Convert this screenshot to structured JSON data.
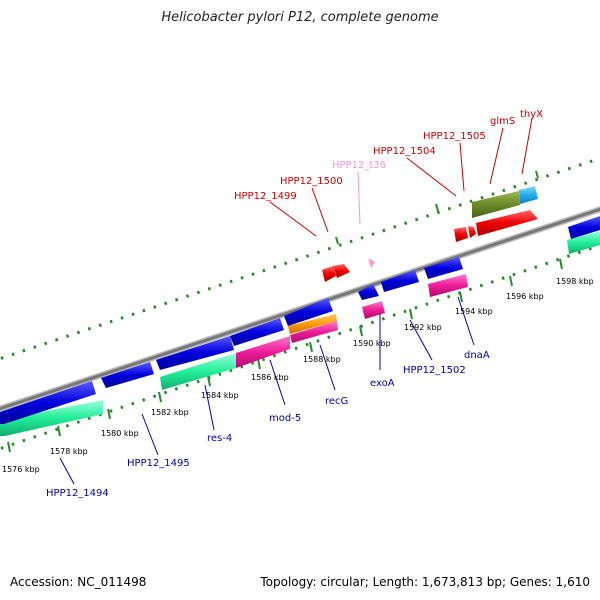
{
  "title": "Helicobacter pylori P12, complete genome",
  "footer": {
    "accession": "Accession: NC_011498",
    "summary": "Topology: circular; Length: 1,673,813 bp; Genes: 1,610"
  },
  "colors": {
    "forward_label": "#cc0000",
    "reverse_label": "#0000aa",
    "trna_label": "#ee99cc",
    "backbone": "#888888",
    "tick": "#2a8a2a"
  },
  "axis_labels": [
    "1576 kbp",
    "1578 kbp",
    "1580 kbp",
    "1582 kbp",
    "1584 kbp",
    "1586 kbp",
    "1588 kbp",
    "1590 kbp",
    "1592 kbp",
    "1594 kbp",
    "1596 kbp",
    "1598 kbp"
  ],
  "forward_gene_labels": [
    "HPP12_1499",
    "HPP12_1500",
    "HPP12_t36",
    "HPP12_1504",
    "HPP12_1505",
    "glmS",
    "thyX"
  ],
  "reverse_gene_labels": [
    "HPP12_1494",
    "HPP12_1495",
    "res-4",
    "mod-5",
    "recG",
    "exoA",
    "HPP12_1502",
    "dnaA"
  ]
}
